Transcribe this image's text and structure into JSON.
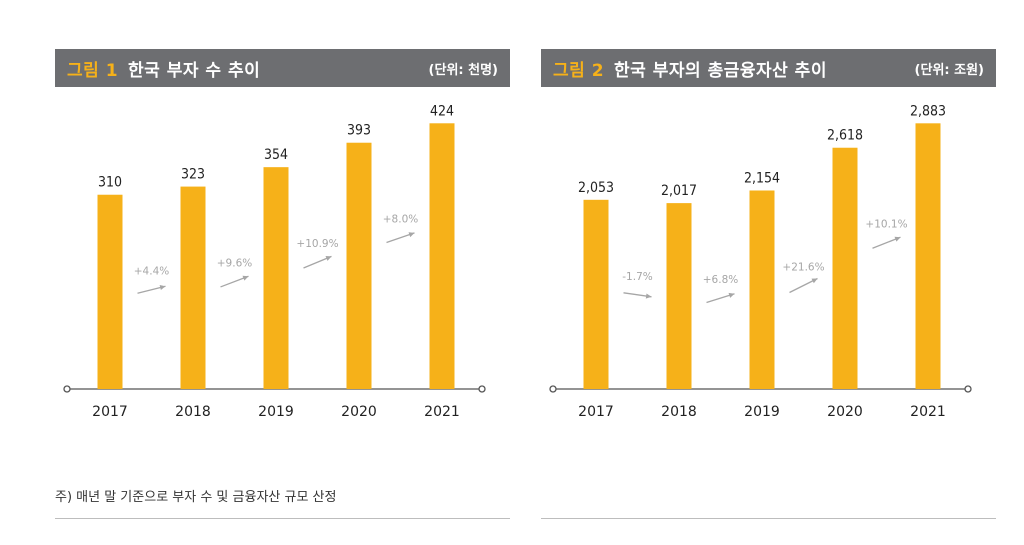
{
  "note": "주) 매년 말 기준으로 부자 수 및 금융자산 규모 산정",
  "colors": {
    "bar": "#f6b119",
    "header_bg": "#6d6e71",
    "fig_num": "#f6b119",
    "growth": "#a6a6a6",
    "axis": "#555555"
  },
  "chart_data": [
    {
      "type": "bar",
      "fig_label": "그림 1",
      "title": "한국 부자 수 추이",
      "unit": "(단위: 천명)",
      "categories": [
        "2017",
        "2018",
        "2019",
        "2020",
        "2021"
      ],
      "values": [
        310,
        323,
        354,
        393,
        424
      ],
      "value_labels": [
        "310",
        "323",
        "354",
        "393",
        "424"
      ],
      "growth_labels": [
        "+4.4%",
        "+9.6%",
        "+10.9%",
        "+8.0%"
      ],
      "growth_values": [
        4.4,
        9.6,
        10.9,
        8.0
      ],
      "ylim": [
        0,
        450
      ],
      "grid": false
    },
    {
      "type": "bar",
      "fig_label": "그림 2",
      "title": "한국 부자의 총금융자산 추이",
      "unit": "(단위: 조원)",
      "categories": [
        "2017",
        "2018",
        "2019",
        "2020",
        "2021"
      ],
      "values": [
        2053,
        2017,
        2154,
        2618,
        2883
      ],
      "value_labels": [
        "2,053",
        "2,017",
        "2,154",
        "2,618",
        "2,883"
      ],
      "growth_labels": [
        "-1.7%",
        "+6.8%",
        "+21.6%",
        "+10.1%"
      ],
      "growth_values": [
        -1.7,
        6.8,
        21.6,
        10.1
      ],
      "ylim": [
        0,
        3060
      ],
      "grid": false
    }
  ]
}
